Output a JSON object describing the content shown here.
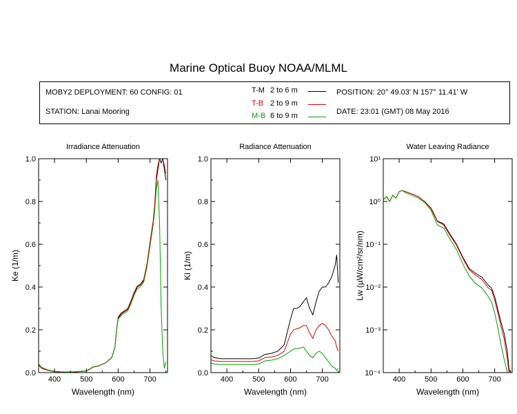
{
  "title": "Marine Optical Buoy NOAA/MLML",
  "info": {
    "deployment": "MOBY2 DEPLOYMENT: 60 CONFIG: 01",
    "station": "STATION: Lanai Mooring",
    "position": "POSITION: 20° 49.03' N   157° 11.41' W",
    "date": "DATE: 23:01 (GMT) 08 May 2016",
    "legend": [
      {
        "code": "T-M",
        "range": "2 to 6  m",
        "color": "#000000"
      },
      {
        "code": "T-B",
        "range": "2 to 9  m",
        "color": "#e00000"
      },
      {
        "code": "M-B",
        "range": "6 to 9  m",
        "color": "#00a000"
      }
    ]
  },
  "chart_data": [
    {
      "type": "line",
      "title": "Irradiance Attenuation",
      "xlabel": "Wavelength (nm)",
      "ylabel": "Ke  (1/m)",
      "xlim": [
        350,
        755
      ],
      "ylim": [
        0,
        1
      ],
      "xticks": [
        400,
        500,
        600,
        700
      ],
      "yticks": [
        0.0,
        0.2,
        0.4,
        0.6,
        0.8,
        1.0
      ],
      "ytick_labels": [
        "0.0",
        "0.2",
        "0.4",
        "0.6",
        "0.8",
        "1.0"
      ],
      "series": [
        {
          "color": "#000000",
          "x": [
            350,
            360,
            380,
            400,
            420,
            440,
            460,
            480,
            500,
            510,
            520,
            540,
            560,
            580,
            590,
            595,
            600,
            605,
            610,
            620,
            630,
            640,
            650,
            660,
            670,
            680,
            690,
            700,
            710,
            715,
            720,
            725,
            730,
            735,
            740,
            745,
            750
          ],
          "y": [
            0.035,
            0.02,
            0.01,
            0.005,
            0.003,
            0.002,
            0.003,
            0.005,
            0.007,
            0.015,
            0.025,
            0.032,
            0.045,
            0.07,
            0.12,
            0.2,
            0.255,
            0.265,
            0.275,
            0.285,
            0.295,
            0.33,
            0.37,
            0.4,
            0.41,
            0.43,
            0.5,
            0.6,
            0.7,
            0.78,
            0.9,
            0.95,
            1.0,
            0.98,
            1.0,
            0.95,
            0.9
          ]
        },
        {
          "color": "#e00000",
          "x": [
            350,
            360,
            380,
            400,
            420,
            440,
            460,
            480,
            500,
            510,
            520,
            540,
            560,
            580,
            590,
            595,
            600,
            605,
            610,
            620,
            630,
            640,
            650,
            660,
            670,
            680,
            690,
            700,
            710,
            715,
            720,
            725,
            730,
            735,
            740,
            745,
            750
          ],
          "y": [
            0.035,
            0.02,
            0.01,
            0.005,
            0.003,
            0.002,
            0.003,
            0.005,
            0.007,
            0.015,
            0.025,
            0.032,
            0.045,
            0.07,
            0.12,
            0.2,
            0.26,
            0.27,
            0.28,
            0.29,
            0.3,
            0.335,
            0.375,
            0.405,
            0.415,
            0.435,
            0.505,
            0.61,
            0.71,
            0.79,
            0.92,
            0.97,
            1.0,
            1.0,
            1.0,
            0.97,
            0.93
          ]
        },
        {
          "color": "#00a000",
          "x": [
            350,
            360,
            380,
            400,
            420,
            440,
            460,
            480,
            500,
            510,
            520,
            540,
            560,
            580,
            590,
            595,
            600,
            605,
            610,
            620,
            630,
            640,
            650,
            660,
            670,
            680,
            690,
            700,
            710,
            715,
            720,
            725,
            730,
            735,
            740,
            745,
            750
          ],
          "y": [
            0.04,
            0.025,
            0.012,
            0.006,
            0.004,
            0.003,
            0.004,
            0.006,
            0.008,
            0.016,
            0.026,
            0.033,
            0.046,
            0.071,
            0.12,
            0.2,
            0.25,
            0.258,
            0.268,
            0.278,
            0.288,
            0.322,
            0.362,
            0.392,
            0.402,
            0.422,
            0.49,
            0.59,
            0.69,
            0.76,
            0.86,
            0.9,
            0.7,
            0.3,
            0.1,
            0.02,
            0.05
          ]
        }
      ]
    },
    {
      "type": "line",
      "title": "Radiance Attenuation",
      "xlabel": "Wavelength (nm)",
      "ylabel": "Kl  (1/m)",
      "xlim": [
        350,
        755
      ],
      "ylim": [
        0,
        1
      ],
      "xticks": [
        400,
        500,
        600,
        700
      ],
      "yticks": [
        0.0,
        0.2,
        0.4,
        0.6,
        0.8,
        1.0
      ],
      "ytick_labels": [
        "0.0",
        "0.2",
        "0.4",
        "0.6",
        "0.8",
        "1.0"
      ],
      "series": [
        {
          "color": "#000000",
          "x": [
            350,
            360,
            380,
            400,
            420,
            440,
            460,
            480,
            500,
            520,
            540,
            560,
            580,
            600,
            610,
            620,
            630,
            640,
            650,
            660,
            670,
            680,
            690,
            700,
            710,
            720,
            730,
            740,
            745,
            750
          ],
          "y": [
            0.08,
            0.07,
            0.065,
            0.065,
            0.065,
            0.065,
            0.065,
            0.065,
            0.068,
            0.085,
            0.09,
            0.1,
            0.13,
            0.25,
            0.3,
            0.3,
            0.31,
            0.33,
            0.35,
            0.3,
            0.27,
            0.33,
            0.38,
            0.4,
            0.4,
            0.42,
            0.45,
            0.5,
            0.55,
            0.42
          ]
        },
        {
          "color": "#e00000",
          "x": [
            350,
            360,
            380,
            400,
            420,
            440,
            460,
            480,
            500,
            520,
            540,
            560,
            580,
            600,
            610,
            620,
            630,
            640,
            650,
            660,
            670,
            680,
            690,
            700,
            710,
            720,
            730,
            740,
            745,
            750
          ],
          "y": [
            0.06,
            0.055,
            0.052,
            0.052,
            0.052,
            0.052,
            0.052,
            0.052,
            0.055,
            0.07,
            0.073,
            0.08,
            0.1,
            0.18,
            0.2,
            0.205,
            0.21,
            0.22,
            0.22,
            0.185,
            0.16,
            0.2,
            0.22,
            0.23,
            0.22,
            0.2,
            0.17,
            0.15,
            0.12,
            0.1
          ]
        },
        {
          "color": "#00a000",
          "x": [
            350,
            360,
            380,
            400,
            420,
            440,
            460,
            480,
            500,
            520,
            540,
            560,
            580,
            600,
            610,
            620,
            630,
            640,
            650,
            660,
            670,
            680,
            690,
            700,
            710,
            720,
            730,
            740,
            745,
            750
          ],
          "y": [
            0.045,
            0.04,
            0.038,
            0.038,
            0.038,
            0.038,
            0.038,
            0.038,
            0.04,
            0.055,
            0.058,
            0.065,
            0.08,
            0.1,
            0.11,
            0.112,
            0.115,
            0.12,
            0.1,
            0.08,
            0.07,
            0.09,
            0.1,
            0.09,
            0.07,
            0.05,
            0.03,
            0.02,
            0.01,
            0.02
          ]
        }
      ]
    },
    {
      "type": "line",
      "title": "Water Leaving Radiance",
      "xlabel": "Wavelength (nm)",
      "ylabel": "Lw  (µW/cm²/sr/nm)",
      "yscale": "log",
      "xlim": [
        350,
        755
      ],
      "ylim": [
        0.0001,
        10
      ],
      "xticks": [
        400,
        500,
        600,
        700
      ],
      "yticks": [
        0.0001,
        0.001,
        0.01,
        0.1,
        1,
        10
      ],
      "ytick_labels": [
        "10⁻⁴",
        "10⁻³",
        "10⁻²",
        "10⁻¹",
        "10⁰",
        "10¹"
      ],
      "series": [
        {
          "color": "#000000",
          "x": [
            350,
            360,
            370,
            380,
            390,
            400,
            410,
            420,
            440,
            460,
            480,
            500,
            510,
            520,
            540,
            560,
            580,
            600,
            620,
            640,
            660,
            680,
            690,
            700,
            710,
            720,
            730,
            740,
            745,
            750
          ],
          "y": [
            1.1,
            1.3,
            1.0,
            1.4,
            1.2,
            1.7,
            1.8,
            1.7,
            1.5,
            1.3,
            1.0,
            0.7,
            0.5,
            0.35,
            0.3,
            0.17,
            0.1,
            0.05,
            0.027,
            0.021,
            0.017,
            0.011,
            0.0095,
            0.006,
            0.003,
            0.0015,
            0.0008,
            0.0003,
            0.00012,
            0.0001
          ]
        },
        {
          "color": "#e00000",
          "x": [
            350,
            360,
            370,
            380,
            390,
            400,
            410,
            420,
            440,
            460,
            480,
            500,
            510,
            520,
            540,
            560,
            580,
            600,
            620,
            640,
            660,
            680,
            690,
            700,
            710,
            720,
            730,
            740,
            745,
            750
          ],
          "y": [
            1.1,
            1.3,
            1.0,
            1.4,
            1.2,
            1.7,
            1.8,
            1.7,
            1.5,
            1.3,
            1.0,
            0.68,
            0.48,
            0.34,
            0.28,
            0.16,
            0.095,
            0.047,
            0.025,
            0.019,
            0.015,
            0.0095,
            0.0085,
            0.005,
            0.0025,
            0.0012,
            0.0006,
            0.0002,
            0.0001,
            0.0001
          ]
        },
        {
          "color": "#00a000",
          "x": [
            350,
            360,
            370,
            380,
            390,
            400,
            410,
            420,
            440,
            460,
            480,
            500,
            510,
            520,
            540,
            560,
            580,
            600,
            620,
            640,
            660,
            680,
            690,
            700,
            710,
            720,
            730,
            740,
            745,
            750
          ],
          "y": [
            1.1,
            1.3,
            1.0,
            1.4,
            1.2,
            1.7,
            1.8,
            1.6,
            1.4,
            1.2,
            0.95,
            0.62,
            0.42,
            0.28,
            0.24,
            0.13,
            0.075,
            0.035,
            0.018,
            0.012,
            0.0095,
            0.006,
            0.0045,
            0.0025,
            0.0011,
            0.00045,
            0.0002,
            0.0001,
            0.0001,
            0.0001
          ]
        }
      ]
    }
  ]
}
